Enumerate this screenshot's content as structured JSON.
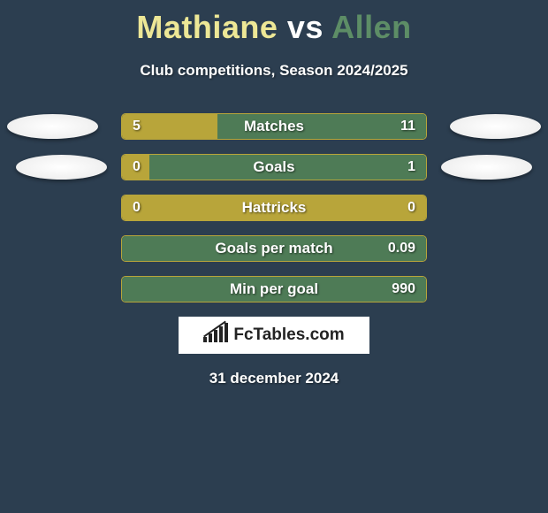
{
  "title": {
    "player1": "Mathiane",
    "vs": "vs",
    "player2": "Allen",
    "player1_color": "#ede796",
    "vs_color": "#ffffff",
    "player2_color": "#5d8d66"
  },
  "subtitle": "Club competitions, Season 2024/2025",
  "colors": {
    "background": "#2c3e50",
    "bar_left": "#b8a53a",
    "bar_right": "#4e7b56",
    "bar_border": "#b8a53a",
    "text": "#ffffff"
  },
  "bar_container_width": 346,
  "stats": [
    {
      "label": "Matches",
      "left_value": "5",
      "right_value": "11",
      "left_pct": 31.25,
      "show_left_badge": true,
      "show_right_badge": true,
      "left_badge_offset": "l1",
      "right_badge_offset": "r1"
    },
    {
      "label": "Goals",
      "left_value": "0",
      "right_value": "1",
      "left_pct": 9.0,
      "show_left_badge": true,
      "show_right_badge": true,
      "left_badge_offset": "l2",
      "right_badge_offset": "r2"
    },
    {
      "label": "Hattricks",
      "left_value": "0",
      "right_value": "0",
      "left_pct": 100.0,
      "show_left_badge": false,
      "show_right_badge": false
    },
    {
      "label": "Goals per match",
      "left_value": "",
      "right_value": "0.09",
      "left_pct": 0.0,
      "show_left_badge": false,
      "show_right_badge": false
    },
    {
      "label": "Min per goal",
      "left_value": "",
      "right_value": "990",
      "left_pct": 0.0,
      "show_left_badge": false,
      "show_right_badge": false
    }
  ],
  "logo": "FcTables.com",
  "date": "31 december 2024",
  "logo_bar_heights": [
    6,
    10,
    14,
    18,
    22
  ]
}
